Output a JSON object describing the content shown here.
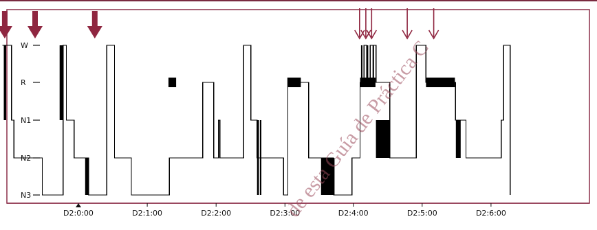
{
  "colors": {
    "frame": "#8b2e49",
    "arrow": "#8f2640",
    "trace": "#000000",
    "watermark": "#9b4b5b"
  },
  "watermark": {
    "text": "de esta Guía de Práctica C"
  },
  "chart_data": {
    "type": "line",
    "chart_style": "step hypnogram",
    "title": "",
    "xlabel": "",
    "ylabel": "",
    "y_categories": [
      "N3",
      "N2",
      "N1",
      "R",
      "W"
    ],
    "y_levels": {
      "N3": 0,
      "N2": 1,
      "N1": 2,
      "R": 3,
      "W": 4
    },
    "x_unit": "hours since D2:0:00",
    "xlim": [
      -0.17,
      0.97
    ],
    "x_ticks": [
      {
        "label": "D2:0:00",
        "value": 0
      },
      {
        "label": "D2:1:00",
        "value": 0.143
      },
      {
        "label": "D2:2:00",
        "value": 0.286
      },
      {
        "label": "D2:3:00",
        "value": 0.429
      },
      {
        "label": "D2:4:00",
        "value": 0.571
      },
      {
        "label": "D2:5:00",
        "value": 0.714
      },
      {
        "label": "D2:6:00",
        "value": 0.857
      }
    ],
    "series": [
      {
        "steps": [
          [
            -0.158,
            4
          ],
          [
            -0.139,
            2
          ],
          [
            -0.134,
            1
          ],
          [
            -0.075,
            0
          ],
          [
            -0.032,
            4
          ],
          [
            -0.025,
            2
          ],
          [
            -0.009,
            1
          ],
          [
            0.021,
            0
          ],
          [
            0.059,
            4
          ],
          [
            0.075,
            1
          ],
          [
            0.11,
            0
          ],
          [
            0.189,
            1
          ],
          [
            0.258,
            3
          ],
          [
            0.281,
            1
          ],
          [
            0.291,
            2
          ],
          [
            0.294,
            1
          ],
          [
            0.343,
            4
          ],
          [
            0.358,
            2
          ],
          [
            0.371,
            1
          ],
          [
            0.426,
            0
          ],
          [
            0.435,
            3
          ],
          [
            0.478,
            1
          ],
          [
            0.53,
            0
          ],
          [
            0.568,
            1
          ],
          [
            0.585,
            3
          ],
          [
            0.593,
            4
          ],
          [
            0.599,
            3
          ],
          [
            0.606,
            4
          ],
          [
            0.618,
            3
          ],
          [
            0.647,
            1
          ],
          [
            0.702,
            4
          ],
          [
            0.722,
            3
          ],
          [
            0.783,
            2
          ],
          [
            0.805,
            1
          ],
          [
            0.878,
            2
          ],
          [
            0.883,
            4
          ],
          [
            0.897,
            0
          ]
        ],
        "end": 0.897
      }
    ],
    "dense_blocks": [
      {
        "x0": -0.155,
        "x1": -0.15,
        "from": "N1",
        "to": "W"
      },
      {
        "x0": -0.039,
        "x1": -0.032,
        "from": "N1",
        "to": "W"
      },
      {
        "x0": 0.014,
        "x1": 0.02,
        "from": "N3",
        "to": "N2"
      },
      {
        "x0": 0.187,
        "x1": 0.203,
        "from": "R",
        "to": "R"
      },
      {
        "x0": 0.371,
        "x1": 0.375,
        "from": "N3",
        "to": "N1"
      },
      {
        "x0": 0.377,
        "x1": 0.38,
        "from": "N3",
        "to": "N1"
      },
      {
        "x0": 0.434,
        "x1": 0.462,
        "from": "R",
        "to": "R"
      },
      {
        "x0": 0.504,
        "x1": 0.532,
        "from": "N3",
        "to": "N2"
      },
      {
        "x0": 0.585,
        "x1": 0.617,
        "from": "R",
        "to": "R"
      },
      {
        "x0": 0.587,
        "x1": 0.59,
        "from": "R",
        "to": "W"
      },
      {
        "x0": 0.599,
        "x1": 0.602,
        "from": "R",
        "to": "W"
      },
      {
        "x0": 0.611,
        "x1": 0.614,
        "from": "R",
        "to": "W"
      },
      {
        "x0": 0.618,
        "x1": 0.647,
        "from": "N2",
        "to": "N1"
      },
      {
        "x0": 0.722,
        "x1": 0.782,
        "from": "R",
        "to": "R"
      },
      {
        "x0": 0.784,
        "x1": 0.794,
        "from": "N1",
        "to": "N2"
      }
    ],
    "arrows": [
      {
        "x": -0.153,
        "size": "large"
      },
      {
        "x": -0.09,
        "size": "large"
      },
      {
        "x": 0.034,
        "size": "large"
      },
      {
        "x": 0.584,
        "size": "small"
      },
      {
        "x": 0.597,
        "size": "small"
      },
      {
        "x": 0.609,
        "size": "small"
      },
      {
        "x": 0.683,
        "size": "small"
      },
      {
        "x": 0.738,
        "size": "small"
      }
    ],
    "markers": [
      {
        "x": 0.0,
        "shape": "triangle"
      }
    ]
  }
}
